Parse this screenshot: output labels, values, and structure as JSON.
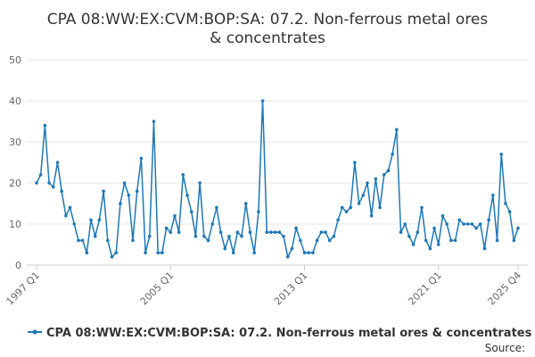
{
  "chart_data": {
    "type": "line",
    "title": "CPA 08:WW:EX:CVM:BOP:SA: 07.2. Non-ferrous metal ores & concentrates",
    "xlabel": "",
    "ylabel": "",
    "ylim": [
      0,
      50
    ],
    "y_ticks": [
      0,
      10,
      20,
      30,
      40,
      50
    ],
    "x_tick_labels": [
      "1997 Q1",
      "2005 Q1",
      "2013 Q1",
      "2021 Q1",
      "2025 Q4"
    ],
    "x_start": "1997 Q1",
    "x_end": "2025 Q4",
    "grid": true,
    "legend_position": "bottom",
    "color": "#1f77b4",
    "source_label": "Source:",
    "series": [
      {
        "name": "CPA 08:WW:EX:CVM:BOP:SA: 07.2. Non-ferrous metal ores & concentrates",
        "values": [
          20,
          22,
          34,
          20,
          19,
          25,
          18,
          12,
          14,
          10,
          6,
          6,
          3,
          11,
          7,
          11,
          18,
          6,
          2,
          3,
          15,
          20,
          17,
          6,
          18,
          26,
          3,
          7,
          35,
          3,
          3,
          9,
          8,
          12,
          8,
          22,
          17,
          13,
          7,
          20,
          7,
          6,
          10,
          14,
          8,
          4,
          7,
          3,
          8,
          7,
          15,
          8,
          3,
          13,
          40,
          8,
          8,
          8,
          8,
          7,
          2,
          4,
          9,
          6,
          3,
          3,
          3,
          6,
          8,
          8,
          6,
          7,
          11,
          14,
          13,
          14,
          25,
          15,
          17,
          20,
          12,
          21,
          14,
          22,
          23,
          27,
          33,
          8,
          10,
          7,
          5,
          8,
          14,
          6,
          4,
          9,
          5,
          12,
          10,
          6,
          6,
          11,
          10,
          10,
          10,
          9,
          10,
          4,
          11,
          17,
          6,
          27,
          15,
          13,
          6,
          9
        ]
      }
    ]
  }
}
